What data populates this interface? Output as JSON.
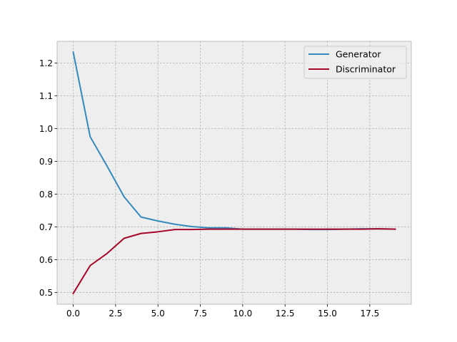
{
  "chart_data": {
    "type": "line",
    "title": "",
    "xlabel": "",
    "ylabel": "",
    "xlim": [
      -0.95,
      19.95
    ],
    "ylim": [
      0.464,
      1.266
    ],
    "x_ticks": [
      0.0,
      2.5,
      5.0,
      7.5,
      10.0,
      12.5,
      15.0,
      17.5
    ],
    "x_tick_labels": [
      "0.0",
      "2.5",
      "5.0",
      "7.5",
      "10.0",
      "12.5",
      "15.0",
      "17.5"
    ],
    "y_ticks": [
      0.5,
      0.6,
      0.7,
      0.8,
      0.9,
      1.0,
      1.1,
      1.2
    ],
    "y_tick_labels": [
      "0.5",
      "0.6",
      "0.7",
      "0.8",
      "0.9",
      "1.0",
      "1.1",
      "1.2"
    ],
    "grid": true,
    "legend_position": "top-right",
    "x": [
      0,
      1,
      2,
      3,
      4,
      5,
      6,
      7,
      8,
      9,
      10,
      11,
      12,
      13,
      14,
      15,
      16,
      17,
      18,
      19
    ],
    "series": [
      {
        "name": "Generator",
        "color": "#348abd",
        "values": [
          1.233,
          0.975,
          0.885,
          0.792,
          0.73,
          0.718,
          0.708,
          0.701,
          0.697,
          0.697,
          0.693,
          0.693,
          0.693,
          0.693,
          0.692,
          0.692,
          0.693,
          0.694,
          0.694,
          0.693
        ]
      },
      {
        "name": "Discriminator",
        "color": "#a60628",
        "values": [
          0.497,
          0.582,
          0.619,
          0.665,
          0.68,
          0.685,
          0.692,
          0.692,
          0.693,
          0.693,
          0.693,
          0.693,
          0.693,
          0.693,
          0.693,
          0.693,
          0.693,
          0.693,
          0.694,
          0.693
        ]
      }
    ]
  },
  "style": {
    "plot_background": "#eeeeee",
    "grid_color": "#b2b2b2",
    "frame_color": "#bcbcbc"
  }
}
